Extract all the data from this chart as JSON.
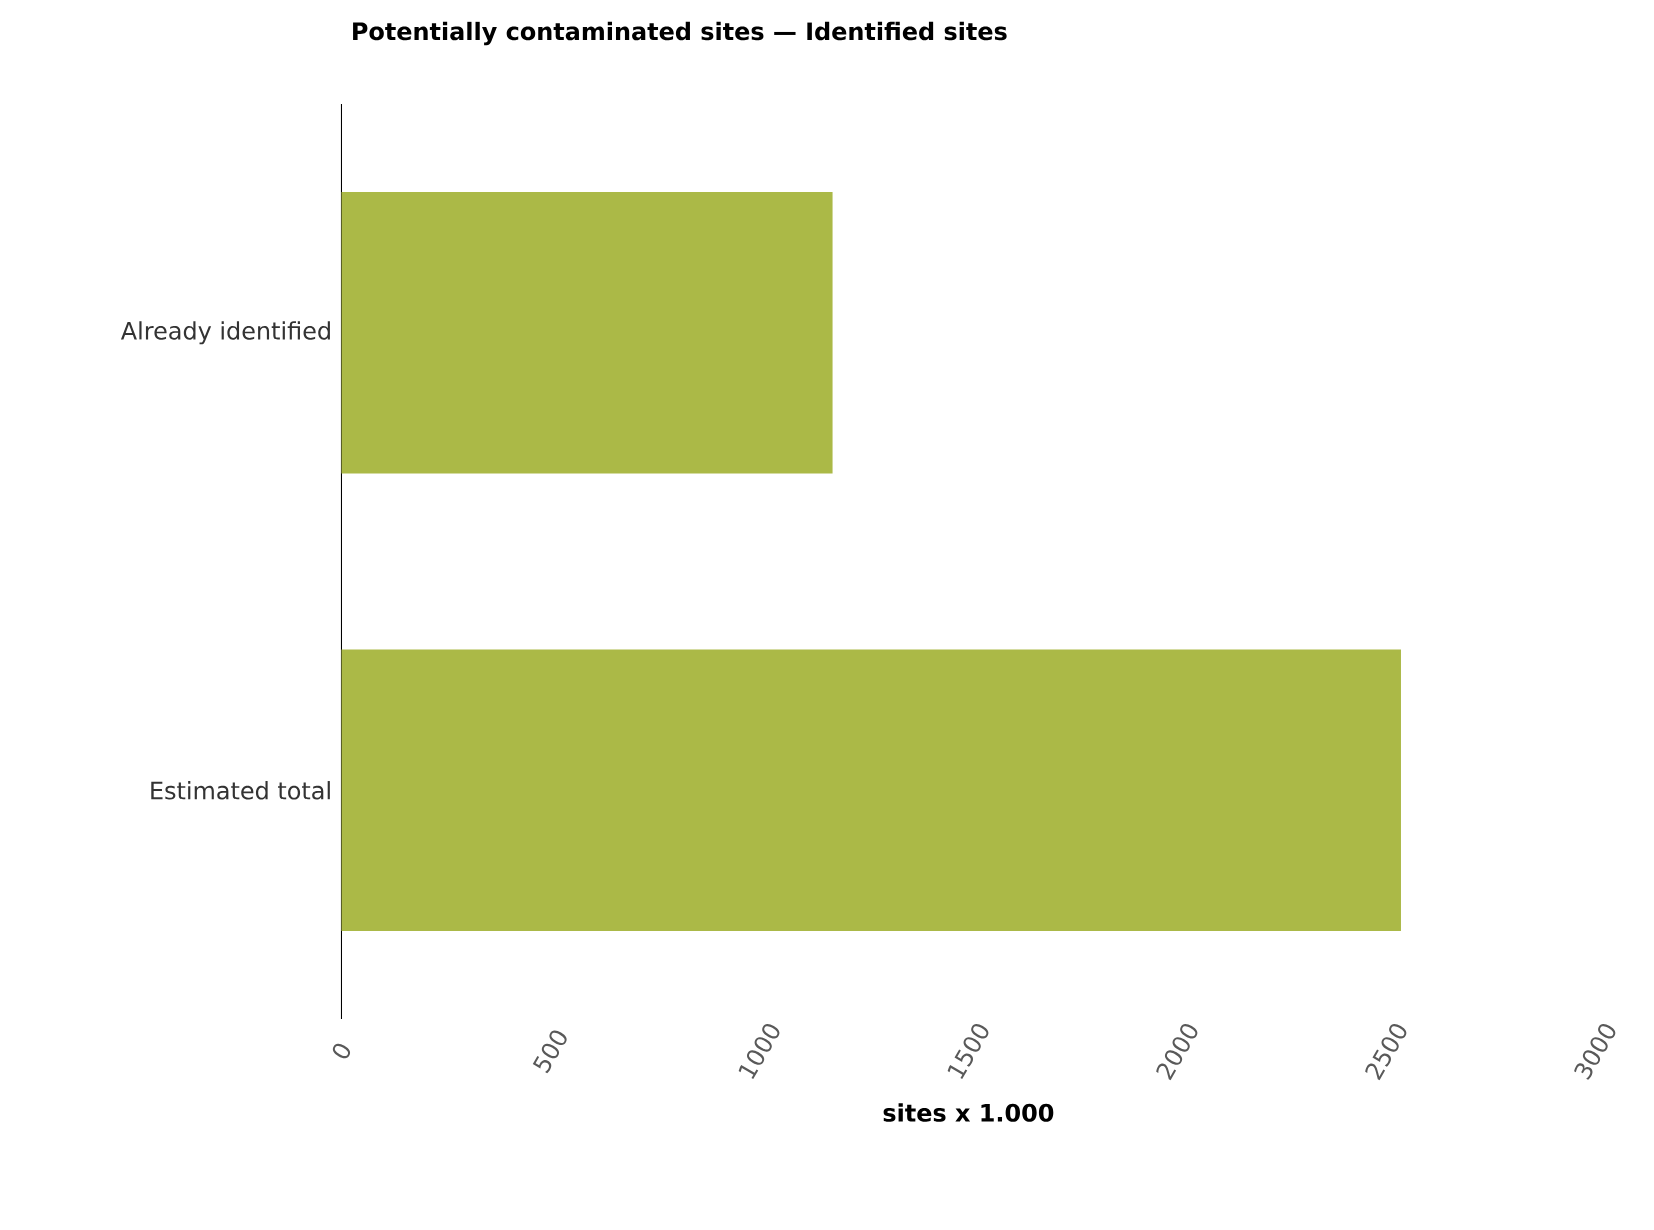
{
  "chart_data": {
    "type": "bar",
    "orientation": "horizontal",
    "title": "Potentially contaminated sites — Identified sites",
    "xlabel": "sites x 1.000",
    "categories": [
      "Already identified",
      "Estimated total"
    ],
    "values": [
      1175,
      2535
    ],
    "color": "#abb947",
    "xlim": [
      0,
      3000
    ],
    "xticks": [
      0,
      500,
      1000,
      1500,
      2000,
      2500,
      3000
    ],
    "grid": false
  }
}
